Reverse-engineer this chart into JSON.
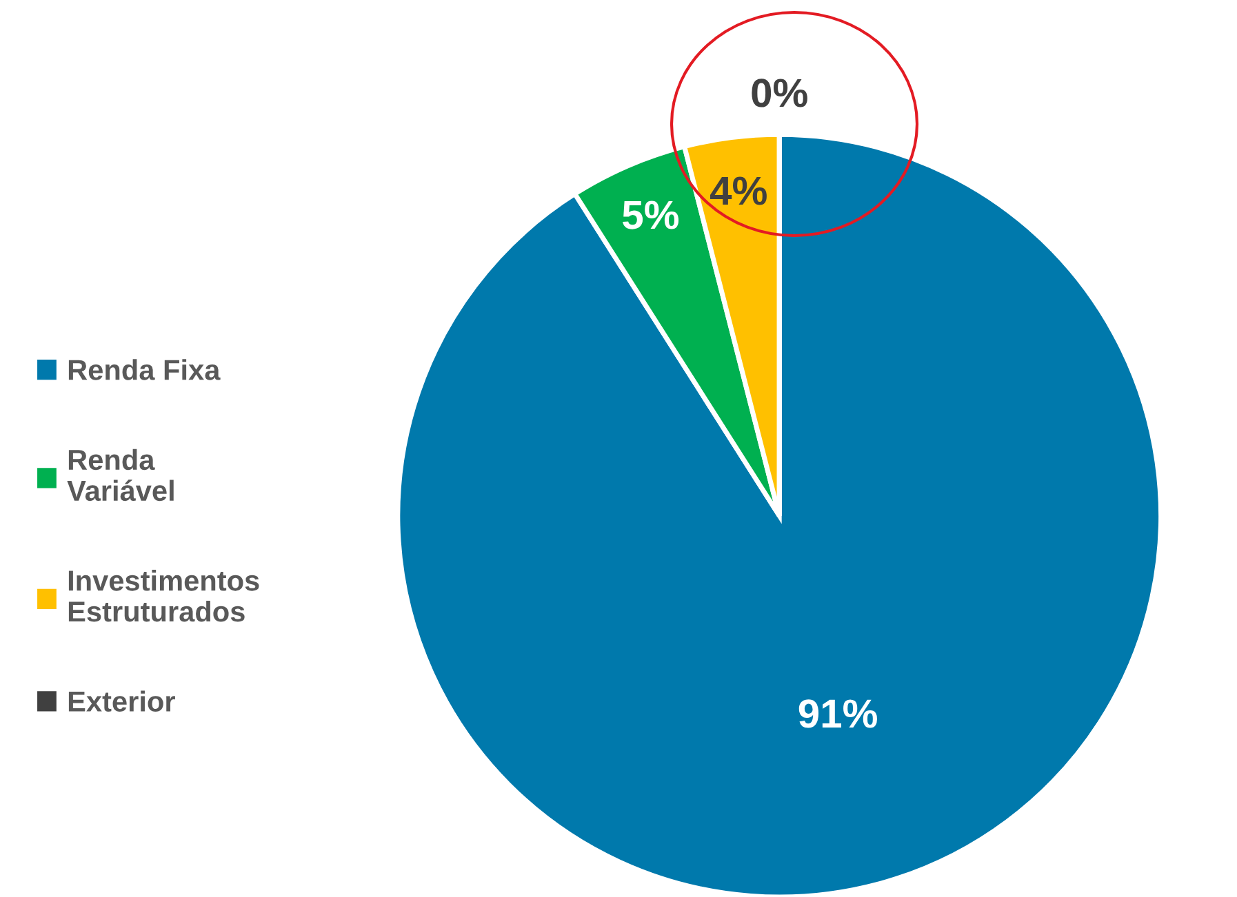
{
  "chart_data": {
    "type": "pie",
    "categories": [
      "Renda Fixa",
      "Renda Variável",
      "Investimentos Estruturados",
      "Exterior"
    ],
    "values": [
      91,
      5,
      4,
      0
    ],
    "colors": [
      "#0079ac",
      "#00b050",
      "#ffc000",
      "#404040"
    ],
    "value_labels": [
      "91%",
      "5%",
      "4%",
      "0%"
    ],
    "legend": "left"
  }
}
